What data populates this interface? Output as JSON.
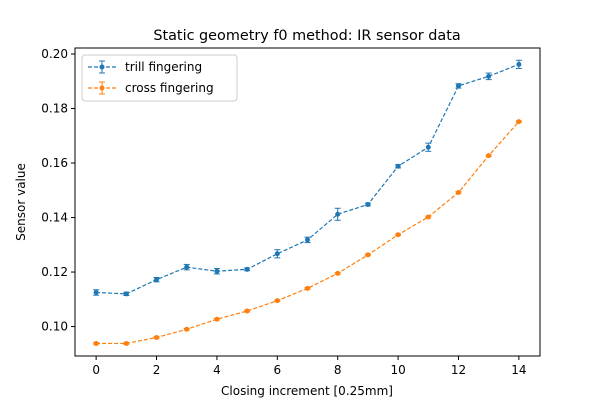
{
  "chart_data": {
    "type": "line",
    "title": "Static geometry f0 method: IR sensor data",
    "xlabel": "Closing increment [0.25mm]",
    "ylabel": "Sensor value",
    "xlim": [
      -0.7,
      14.7
    ],
    "ylim": [
      0.0892,
      0.2022
    ],
    "xticks": [
      0,
      2,
      4,
      6,
      8,
      10,
      12,
      14
    ],
    "yticks": [
      0.1,
      0.12,
      0.14,
      0.16,
      0.18,
      0.2
    ],
    "ytick_labels": [
      "0.10",
      "0.12",
      "0.14",
      "0.16",
      "0.18",
      "0.20"
    ],
    "legend_position": "upper-left",
    "grid": false,
    "x": [
      0,
      1,
      2,
      3,
      4,
      5,
      6,
      7,
      8,
      9,
      10,
      11,
      12,
      13,
      14
    ],
    "series": [
      {
        "name": "trill fingering",
        "color": "#1f77b4",
        "values": [
          0.1125,
          0.112,
          0.1172,
          0.1218,
          0.1203,
          0.121,
          0.1267,
          0.1318,
          0.1412,
          0.1448,
          0.1588,
          0.1658,
          0.1883,
          0.1918,
          0.1962
        ],
        "errors": [
          0.001,
          0.0006,
          0.0008,
          0.001,
          0.001,
          0.0005,
          0.0015,
          0.001,
          0.0022,
          0.0005,
          0.0006,
          0.0015,
          0.0008,
          0.0012,
          0.0015
        ]
      },
      {
        "name": "cross fingering",
        "color": "#ff7f0e",
        "values": [
          0.0938,
          0.0938,
          0.096,
          0.099,
          0.1027,
          0.1057,
          0.1095,
          0.114,
          0.1195,
          0.1263,
          0.1337,
          0.1402,
          0.1492,
          0.1627,
          0.1752
        ],
        "errors": [
          0.0003,
          0.0003,
          0.0003,
          0.0003,
          0.0003,
          0.0003,
          0.0003,
          0.0003,
          0.0003,
          0.0003,
          0.0003,
          0.0003,
          0.0003,
          0.0003,
          0.0003
        ]
      }
    ]
  }
}
